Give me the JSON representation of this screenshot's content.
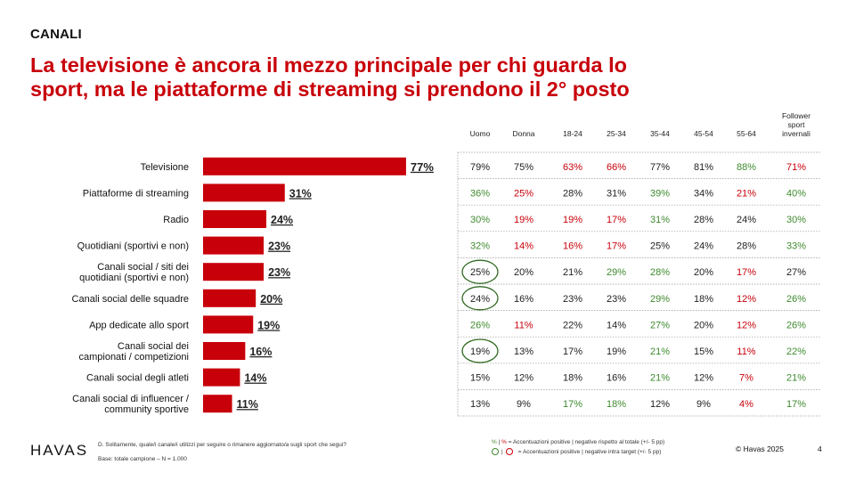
{
  "header": {
    "section": "CANALI",
    "title_line1": "La televisione è ancora il mezzo principale per chi guarda lo",
    "title_line2": "sport, ma le piattaforme di streaming si prendono il 2° posto"
  },
  "colors": {
    "accent": "#c8000a",
    "positive": "#3f8a2e",
    "negative": "#c8000a",
    "text": "#111111"
  },
  "chart_data": {
    "type": "bar",
    "orientation": "horizontal",
    "categories": [
      "Televisione",
      "Piattaforme di streaming",
      "Radio",
      "Quotidiani (sportivi e non)",
      "Canali social / siti dei quotidiani (sportivi e non)",
      "Canali social delle squadre",
      "App dedicate allo sport",
      "Canali social dei campionati / competizioni",
      "Canali social degli atleti",
      "Canali social di influencer / community sportive"
    ],
    "category_lines": [
      [
        "Televisione"
      ],
      [
        "Piattaforme di streaming"
      ],
      [
        "Radio"
      ],
      [
        "Quotidiani (sportivi e non)"
      ],
      [
        "Canali social / siti dei",
        "quotidiani (sportivi e non)"
      ],
      [
        "Canali social delle squadre"
      ],
      [
        "App dedicate allo sport"
      ],
      [
        "Canali social dei",
        "campionati / competizioni"
      ],
      [
        "Canali social degli atleti"
      ],
      [
        "Canali social di influencer /",
        "community sportive"
      ]
    ],
    "values": [
      77,
      31,
      24,
      23,
      23,
      20,
      19,
      16,
      14,
      11
    ],
    "value_labels": [
      "77%",
      "31%",
      "24%",
      "23%",
      "23%",
      "20%",
      "19%",
      "16%",
      "14%",
      "11%"
    ],
    "xlim": [
      0,
      100
    ],
    "bar_color": "#c8000a",
    "grid": false
  },
  "breakdown_table": {
    "columns": [
      "Uomo",
      "Donna",
      "18-24",
      "25-34",
      "35-44",
      "45-54",
      "55-64",
      "Follower sport invernali"
    ],
    "column_lines": [
      [
        "Uomo"
      ],
      [
        "Donna"
      ],
      [
        "18-24"
      ],
      [
        "25-34"
      ],
      [
        "35-44"
      ],
      [
        "45-54"
      ],
      [
        "55-64"
      ],
      [
        "Follower",
        "sport",
        "invernali"
      ]
    ],
    "rows": [
      [
        {
          "v": "79%",
          "s": "n"
        },
        {
          "v": "75%",
          "s": "n"
        },
        {
          "v": "63%",
          "s": "neg"
        },
        {
          "v": "66%",
          "s": "neg"
        },
        {
          "v": "77%",
          "s": "n"
        },
        {
          "v": "81%",
          "s": "n"
        },
        {
          "v": "88%",
          "s": "pos"
        },
        {
          "v": "71%",
          "s": "neg"
        }
      ],
      [
        {
          "v": "36%",
          "s": "pos"
        },
        {
          "v": "25%",
          "s": "neg"
        },
        {
          "v": "28%",
          "s": "n"
        },
        {
          "v": "31%",
          "s": "n"
        },
        {
          "v": "39%",
          "s": "pos"
        },
        {
          "v": "34%",
          "s": "n"
        },
        {
          "v": "21%",
          "s": "neg"
        },
        {
          "v": "40%",
          "s": "pos"
        }
      ],
      [
        {
          "v": "30%",
          "s": "pos"
        },
        {
          "v": "19%",
          "s": "neg"
        },
        {
          "v": "19%",
          "s": "neg"
        },
        {
          "v": "17%",
          "s": "neg"
        },
        {
          "v": "31%",
          "s": "pos"
        },
        {
          "v": "28%",
          "s": "n"
        },
        {
          "v": "24%",
          "s": "n"
        },
        {
          "v": "30%",
          "s": "pos"
        }
      ],
      [
        {
          "v": "32%",
          "s": "pos"
        },
        {
          "v": "14%",
          "s": "neg"
        },
        {
          "v": "16%",
          "s": "neg"
        },
        {
          "v": "17%",
          "s": "neg"
        },
        {
          "v": "25%",
          "s": "n"
        },
        {
          "v": "24%",
          "s": "n"
        },
        {
          "v": "28%",
          "s": "n"
        },
        {
          "v": "33%",
          "s": "pos"
        }
      ],
      [
        {
          "v": "25%",
          "s": "n",
          "circle": "pos"
        },
        {
          "v": "20%",
          "s": "n"
        },
        {
          "v": "21%",
          "s": "n"
        },
        {
          "v": "29%",
          "s": "pos"
        },
        {
          "v": "28%",
          "s": "pos"
        },
        {
          "v": "20%",
          "s": "n"
        },
        {
          "v": "17%",
          "s": "neg"
        },
        {
          "v": "27%",
          "s": "n"
        }
      ],
      [
        {
          "v": "24%",
          "s": "n",
          "circle": "pos"
        },
        {
          "v": "16%",
          "s": "n"
        },
        {
          "v": "23%",
          "s": "n"
        },
        {
          "v": "23%",
          "s": "n"
        },
        {
          "v": "29%",
          "s": "pos"
        },
        {
          "v": "18%",
          "s": "n"
        },
        {
          "v": "12%",
          "s": "neg"
        },
        {
          "v": "26%",
          "s": "pos"
        }
      ],
      [
        {
          "v": "26%",
          "s": "pos"
        },
        {
          "v": "11%",
          "s": "neg"
        },
        {
          "v": "22%",
          "s": "n"
        },
        {
          "v": "14%",
          "s": "n"
        },
        {
          "v": "27%",
          "s": "pos"
        },
        {
          "v": "20%",
          "s": "n"
        },
        {
          "v": "12%",
          "s": "neg"
        },
        {
          "v": "26%",
          "s": "pos"
        }
      ],
      [
        {
          "v": "19%",
          "s": "n",
          "circle": "pos"
        },
        {
          "v": "13%",
          "s": "n"
        },
        {
          "v": "17%",
          "s": "n"
        },
        {
          "v": "19%",
          "s": "n"
        },
        {
          "v": "21%",
          "s": "pos"
        },
        {
          "v": "15%",
          "s": "n"
        },
        {
          "v": "11%",
          "s": "neg"
        },
        {
          "v": "22%",
          "s": "pos"
        }
      ],
      [
        {
          "v": "15%",
          "s": "n"
        },
        {
          "v": "12%",
          "s": "n"
        },
        {
          "v": "18%",
          "s": "n"
        },
        {
          "v": "16%",
          "s": "n"
        },
        {
          "v": "21%",
          "s": "pos"
        },
        {
          "v": "12%",
          "s": "n"
        },
        {
          "v": "7%",
          "s": "neg"
        },
        {
          "v": "21%",
          "s": "pos"
        }
      ],
      [
        {
          "v": "13%",
          "s": "n"
        },
        {
          "v": "9%",
          "s": "n"
        },
        {
          "v": "17%",
          "s": "pos"
        },
        {
          "v": "18%",
          "s": "pos"
        },
        {
          "v": "12%",
          "s": "n"
        },
        {
          "v": "9%",
          "s": "n"
        },
        {
          "v": "4%",
          "s": "neg"
        },
        {
          "v": "17%",
          "s": "pos"
        }
      ]
    ]
  },
  "footer": {
    "logo": "HAVAS",
    "question": "D. Solitamente, quale/i canale/i utilizzi per seguire o rimanere aggiornato/a sugli sport che segui?",
    "base": "Base: totale campione – N = 1.000",
    "legend_pos_mark": "%",
    "legend_sep": "|",
    "legend_neg_mark": "%",
    "legend_text1": "= Accentuazioni positive | negative rispetto al totale (+/- 5 pp)",
    "legend_text2": "= Accentuazioni positive | negative intra target (+/- 5 pp)",
    "copyright": "© Havas 2025",
    "page_number": "4"
  }
}
